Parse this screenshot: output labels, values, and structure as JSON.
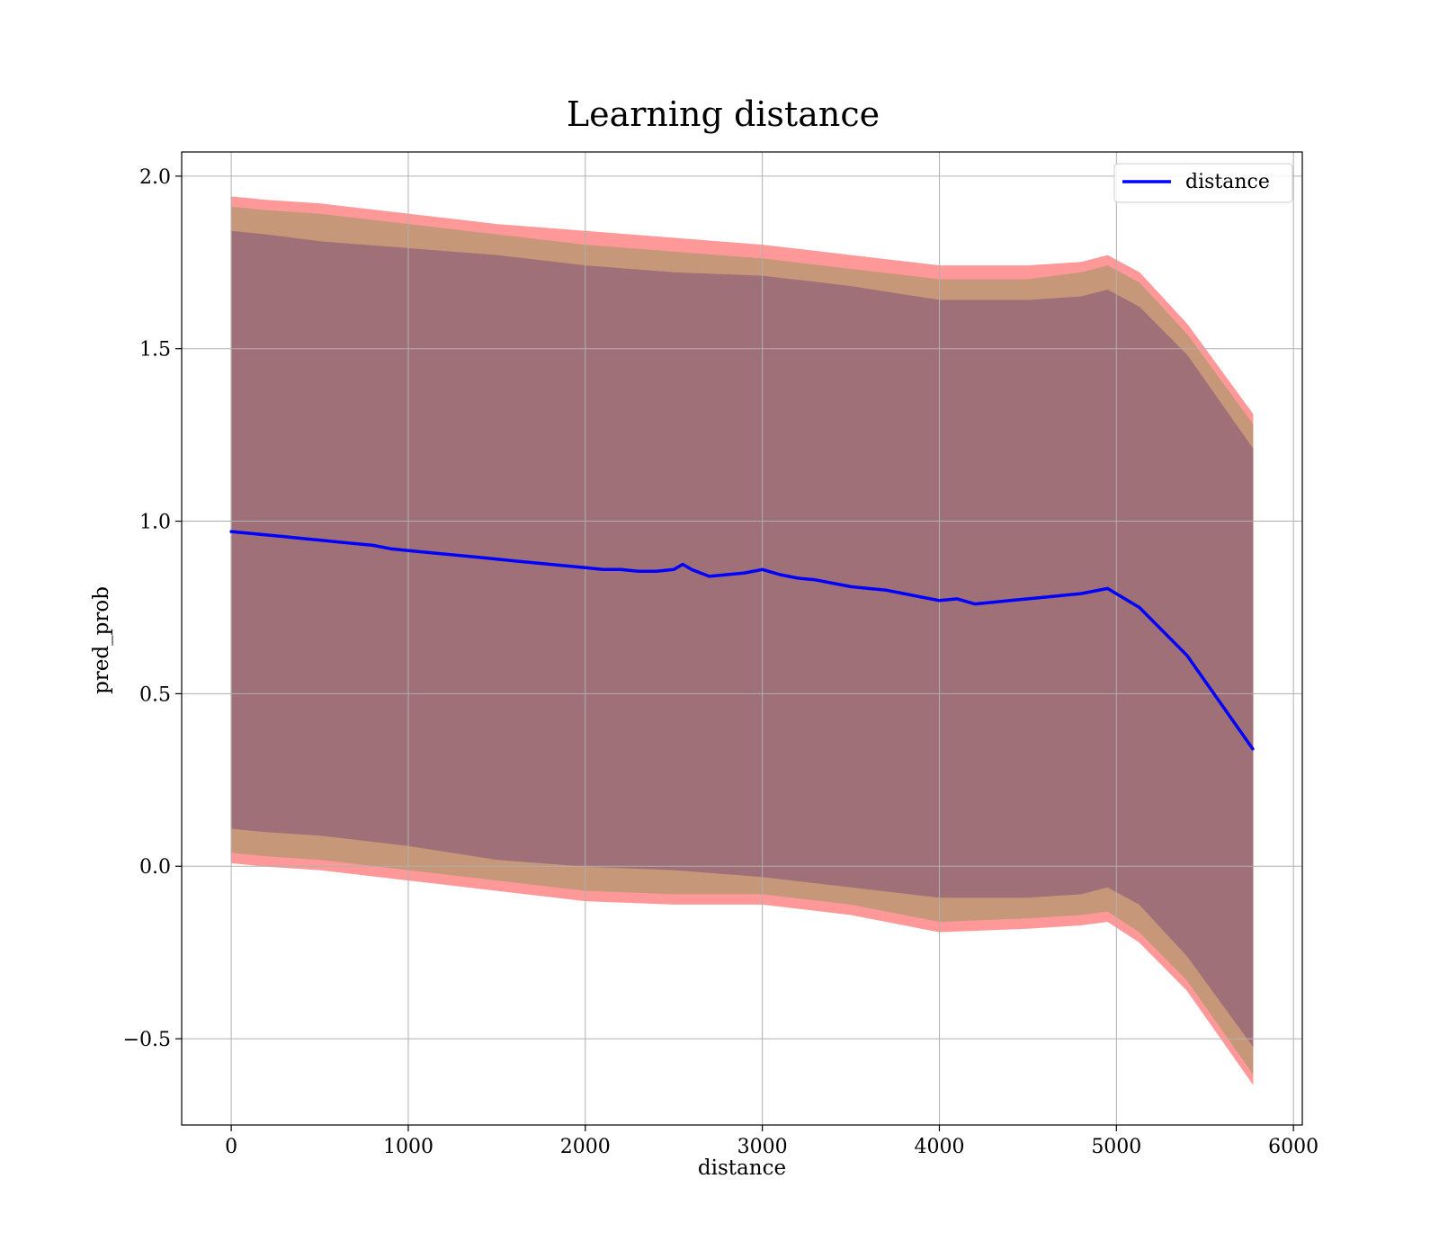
{
  "chart_data": {
    "type": "line",
    "title": "Learning distance",
    "xlabel": "distance",
    "ylabel": "pred_prob",
    "xlim": [
      -280,
      6050
    ],
    "ylim": [
      -0.75,
      2.07
    ],
    "xticks": [
      0,
      1000,
      2000,
      3000,
      4000,
      5000,
      6000
    ],
    "xtick_labels": [
      "0",
      "1000",
      "2000",
      "3000",
      "4000",
      "5000",
      "6000"
    ],
    "yticks": [
      -0.5,
      0.0,
      0.5,
      1.0,
      1.5,
      2.0
    ],
    "ytick_labels": [
      "−0.5",
      "0.0",
      "0.5",
      "1.0",
      "1.5",
      "2.0"
    ],
    "grid": true,
    "legend": {
      "position": "top-right",
      "entries": [
        "distance"
      ]
    },
    "colors": {
      "line": "#0000ff",
      "outer_band": "#ff9999",
      "middle_band": "#c7977a",
      "inner_band": "#a07078",
      "grid": "#b0b0b0"
    },
    "series": [
      {
        "name": "distance",
        "x": [
          0,
          100,
          200,
          300,
          400,
          500,
          600,
          700,
          800,
          900,
          1000,
          1100,
          1200,
          1300,
          1400,
          1500,
          1600,
          1700,
          1800,
          1900,
          2000,
          2100,
          2200,
          2300,
          2400,
          2500,
          2550,
          2600,
          2700,
          2800,
          2900,
          3000,
          3100,
          3200,
          3300,
          3400,
          3500,
          3600,
          3700,
          3800,
          3900,
          4000,
          4100,
          4200,
          4300,
          4400,
          4500,
          4600,
          4700,
          4800,
          4950,
          5130,
          5400,
          5770
        ],
        "y": [
          0.97,
          0.965,
          0.96,
          0.955,
          0.95,
          0.945,
          0.94,
          0.935,
          0.93,
          0.92,
          0.915,
          0.91,
          0.905,
          0.9,
          0.895,
          0.89,
          0.885,
          0.88,
          0.875,
          0.87,
          0.865,
          0.86,
          0.86,
          0.855,
          0.855,
          0.86,
          0.875,
          0.86,
          0.84,
          0.845,
          0.85,
          0.86,
          0.845,
          0.835,
          0.83,
          0.82,
          0.81,
          0.805,
          0.8,
          0.79,
          0.78,
          0.77,
          0.775,
          0.76,
          0.765,
          0.77,
          0.775,
          0.78,
          0.785,
          0.79,
          0.805,
          0.75,
          0.61,
          0.34
        ]
      }
    ],
    "bands": [
      {
        "role": "outer",
        "x": [
          0,
          200,
          500,
          1000,
          1500,
          2000,
          2500,
          3000,
          3500,
          4000,
          4500,
          4800,
          4950,
          5130,
          5400,
          5770
        ],
        "upper": [
          1.94,
          1.93,
          1.92,
          1.89,
          1.86,
          1.84,
          1.82,
          1.8,
          1.77,
          1.74,
          1.74,
          1.75,
          1.77,
          1.72,
          1.57,
          1.31
        ],
        "lower": [
          0.01,
          0.0,
          -0.01,
          -0.04,
          -0.07,
          -0.1,
          -0.11,
          -0.11,
          -0.14,
          -0.19,
          -0.18,
          -0.17,
          -0.16,
          -0.22,
          -0.36,
          -0.63
        ]
      },
      {
        "role": "middle",
        "x": [
          0,
          200,
          500,
          1000,
          1500,
          2000,
          2500,
          3000,
          3500,
          4000,
          4500,
          4800,
          4950,
          5130,
          5400,
          5770
        ],
        "upper": [
          1.91,
          1.9,
          1.89,
          1.86,
          1.83,
          1.8,
          1.78,
          1.76,
          1.73,
          1.7,
          1.7,
          1.72,
          1.74,
          1.69,
          1.54,
          1.28
        ],
        "lower": [
          0.04,
          0.03,
          0.02,
          -0.01,
          -0.04,
          -0.07,
          -0.08,
          -0.08,
          -0.11,
          -0.16,
          -0.15,
          -0.14,
          -0.13,
          -0.19,
          -0.33,
          -0.6
        ]
      },
      {
        "role": "inner",
        "x": [
          0,
          200,
          500,
          1000,
          1500,
          2000,
          2500,
          3000,
          3500,
          4000,
          4500,
          4800,
          4950,
          5130,
          5400,
          5770
        ],
        "upper": [
          1.84,
          1.83,
          1.81,
          1.79,
          1.77,
          1.74,
          1.72,
          1.71,
          1.68,
          1.64,
          1.64,
          1.65,
          1.67,
          1.62,
          1.48,
          1.21
        ],
        "lower": [
          0.11,
          0.1,
          0.09,
          0.06,
          0.02,
          0.0,
          -0.01,
          -0.03,
          -0.06,
          -0.09,
          -0.09,
          -0.08,
          -0.06,
          -0.11,
          -0.26,
          -0.52
        ]
      }
    ]
  }
}
